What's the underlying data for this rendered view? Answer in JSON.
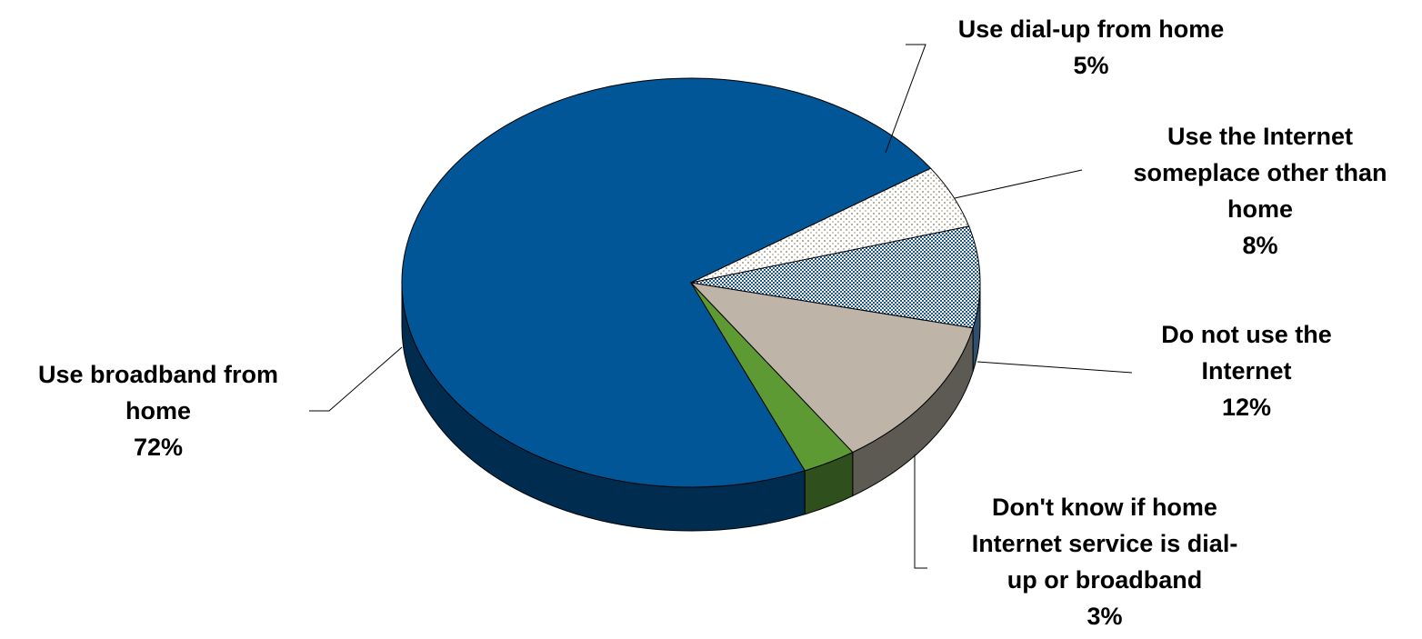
{
  "chart_data": {
    "type": "pie",
    "title": "",
    "slices": [
      {
        "label_lines": [
          "Use broadband from",
          "home"
        ],
        "value": 72,
        "value_label": "72%",
        "color": "#005696",
        "side_color": "#002D4F",
        "pattern": "solid"
      },
      {
        "label_lines": [
          "Use dial-up from home"
        ],
        "value": 5,
        "value_label": "5%",
        "color": "#EAE5DC",
        "side_color": "#8A857C",
        "pattern": "dots"
      },
      {
        "label_lines": [
          "Use the Internet",
          "someplace other than",
          "home"
        ],
        "value": 8,
        "value_label": "8%",
        "color": "#5B90C0",
        "side_color": "#2E4F70",
        "pattern": "checker"
      },
      {
        "label_lines": [
          "Do not use the",
          "Internet"
        ],
        "value": 12,
        "value_label": "12%",
        "color": "#BEB5A8",
        "side_color": "#5C5A52",
        "pattern": "solid"
      },
      {
        "label_lines": [
          "Don't know if home",
          "Internet service is dial-",
          "up or broadband"
        ],
        "value": 3,
        "value_label": "3%",
        "color": "#5E9A34",
        "side_color": "#2F4F1C",
        "pattern": "solid"
      }
    ]
  }
}
